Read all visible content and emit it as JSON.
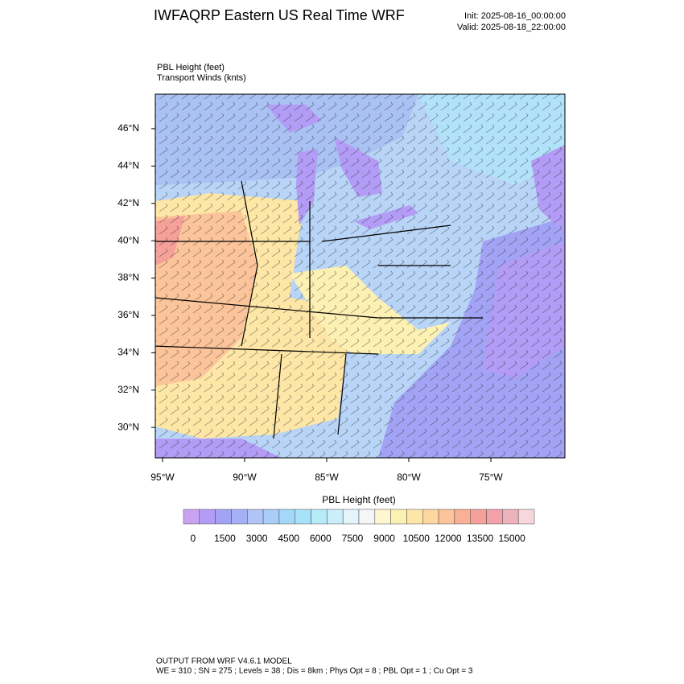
{
  "header": {
    "title": "IWFAQRP Eastern US Real Time WRF",
    "init": "Init: 2025-08-16_00:00:00",
    "valid": "Valid: 2025-08-18_22:00:00"
  },
  "map": {
    "field_label": "PBL Height   (feet)",
    "vector_label": "Transport Winds   (knts)",
    "xlim": [
      -95.44,
      -70.49
    ],
    "ylim": [
      28.37,
      47.85
    ],
    "xticks": [
      {
        "value": -95,
        "label": "95°W"
      },
      {
        "value": -90,
        "label": "90°W"
      },
      {
        "value": -85,
        "label": "85°W"
      },
      {
        "value": -80,
        "label": "80°W"
      },
      {
        "value": -75,
        "label": "75°W"
      }
    ],
    "yticks": [
      {
        "value": 30,
        "label": "30°N"
      },
      {
        "value": 32,
        "label": "32°N"
      },
      {
        "value": 34,
        "label": "34°N"
      },
      {
        "value": 36,
        "label": "36°N"
      },
      {
        "value": 38,
        "label": "38°N"
      },
      {
        "value": 40,
        "label": "40°N"
      },
      {
        "value": 42,
        "label": "42°N"
      },
      {
        "value": 44,
        "label": "44°N"
      },
      {
        "value": 46,
        "label": "46°N"
      }
    ]
  },
  "colorbar": {
    "title": "PBL Height  (feet)",
    "lim": [
      -750,
      15750
    ],
    "ticks": [
      0,
      1500,
      3000,
      4500,
      6000,
      7500,
      9000,
      10500,
      12000,
      13500,
      15000
    ],
    "colors": [
      "#c9a3f2",
      "#b39cf5",
      "#a3a3f5",
      "#a6b0f5",
      "#b0c4f5",
      "#a8cdf7",
      "#a5d8f8",
      "#a6e3fa",
      "#b8ebf9",
      "#cbeffa",
      "#e5f3fb",
      "#f5f7f7",
      "#fdf6d0",
      "#fdf0b3",
      "#fde6a6",
      "#fdd6a0",
      "#fcc49a",
      "#f9b096",
      "#f6a09a",
      "#f2a1a8",
      "#eeb2bd",
      "#f7d7dc"
    ]
  },
  "footer": {
    "line1": "OUTPUT FROM WRF V4.6.1 MODEL",
    "line2": "WE = 310 ; SN = 275 ; Levels = 38 ; Dis = 8km ; Phys Opt = 8 ; PBL Opt = 1 ; Cu Opt = 3"
  }
}
